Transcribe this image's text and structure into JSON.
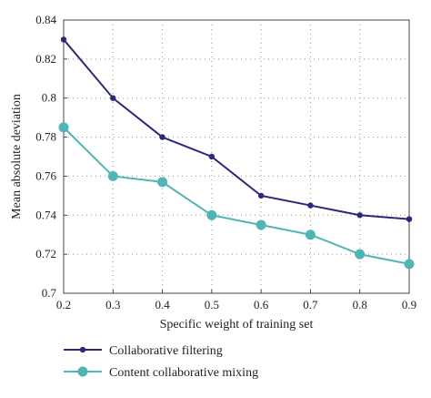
{
  "chart_data": {
    "type": "line",
    "title": "",
    "xlabel": "Specific weight of training set",
    "ylabel": "Mean absolute deviation",
    "xlim": [
      0.2,
      0.9
    ],
    "ylim": [
      0.7,
      0.84
    ],
    "x_ticks": [
      "0.2",
      "0.3",
      "0.4",
      "0.5",
      "0.6",
      "0.7",
      "0.8",
      "0.9"
    ],
    "y_ticks": [
      "0.7",
      "0.72",
      "0.74",
      "0.76",
      "0.78",
      "0.8",
      "0.82",
      "0.84"
    ],
    "grid": "dotted",
    "legend_position": "bottom",
    "x": [
      0.2,
      0.3,
      0.4,
      0.5,
      0.6,
      0.7,
      0.8,
      0.9
    ],
    "series": [
      {
        "name": "Collaborative filtering",
        "color": "#2b2a7a",
        "marker": "small-circle",
        "values": [
          0.83,
          0.8,
          0.78,
          0.77,
          0.75,
          0.745,
          0.74,
          0.738
        ]
      },
      {
        "name": "Content collaborative mixing",
        "color": "#4fb5b5",
        "marker": "large-circle",
        "values": [
          0.785,
          0.76,
          0.757,
          0.74,
          0.735,
          0.73,
          0.72,
          0.715
        ]
      }
    ]
  }
}
